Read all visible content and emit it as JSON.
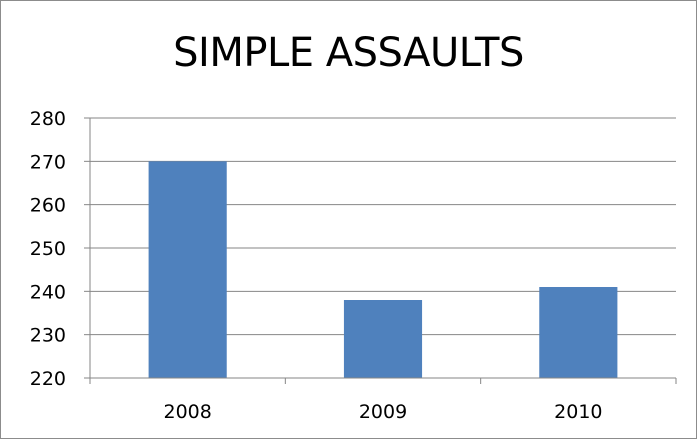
{
  "chart_data": {
    "type": "bar",
    "title": "SIMPLE ASSAULTS",
    "xlabel": "",
    "ylabel": "",
    "categories": [
      "2008",
      "2009",
      "2010"
    ],
    "values": [
      270,
      238,
      241
    ],
    "ylim": [
      220,
      280
    ],
    "y_ticks": [
      "220",
      "230",
      "240",
      "250",
      "260",
      "270",
      "280"
    ],
    "grid": true,
    "legend": "none",
    "bar_color": "#4F81BD"
  }
}
